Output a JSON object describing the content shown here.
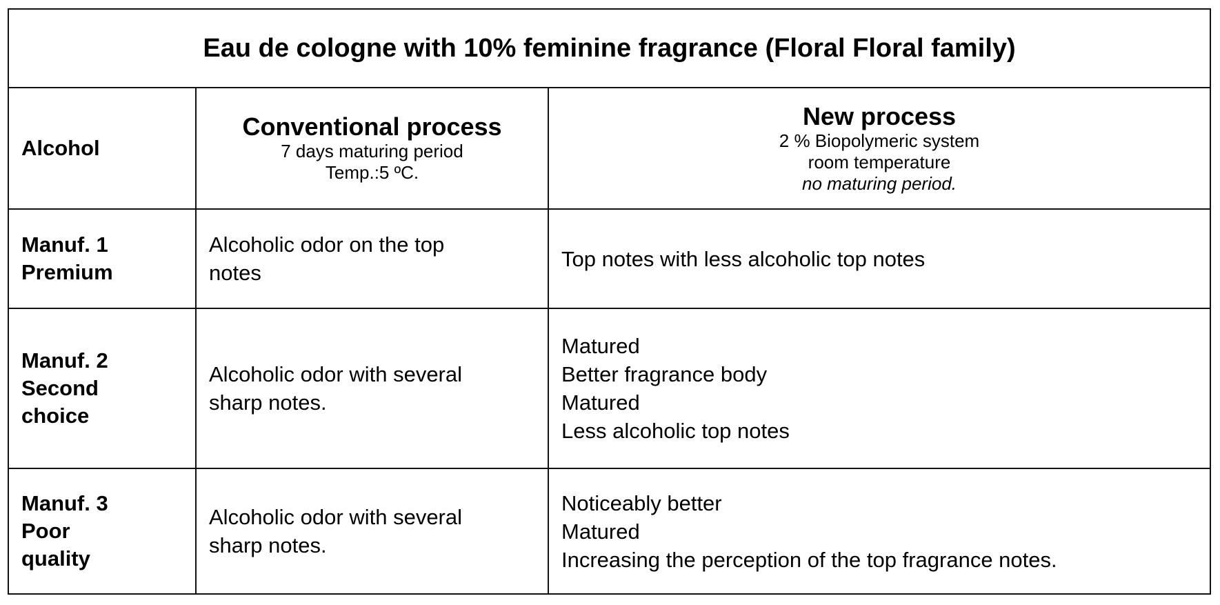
{
  "title": "Eau de cologne with 10% feminine fragrance (Floral Floral family)",
  "header": {
    "col1": "Alcohol",
    "col2": {
      "title": "Conventional process",
      "lines": [
        "7 days maturing period",
        "Temp.:5 ºC."
      ]
    },
    "col3": {
      "title": "New process",
      "lines": [
        "2 % Biopolymeric system",
        "room temperature",
        "no maturing period."
      ]
    }
  },
  "rows": [
    {
      "label": [
        "Manuf. 1",
        "Premium"
      ],
      "conventional": [
        "Alcoholic odor on the top",
        "notes"
      ],
      "new": [
        "Top notes with less alcoholic top notes"
      ]
    },
    {
      "label": [
        "Manuf. 2",
        "Second",
        "choice"
      ],
      "conventional": [
        "Alcoholic odor with several",
        "sharp notes."
      ],
      "new": [
        "Matured",
        "Better fragrance body",
        "Matured",
        "Less alcoholic top notes"
      ]
    },
    {
      "label": [
        "Manuf. 3",
        "Poor",
        "quality"
      ],
      "conventional": [
        "Alcoholic odor with several",
        "sharp notes."
      ],
      "new": [
        "Noticeably better",
        "Matured",
        "Increasing the perception of the top fragrance notes."
      ]
    }
  ]
}
